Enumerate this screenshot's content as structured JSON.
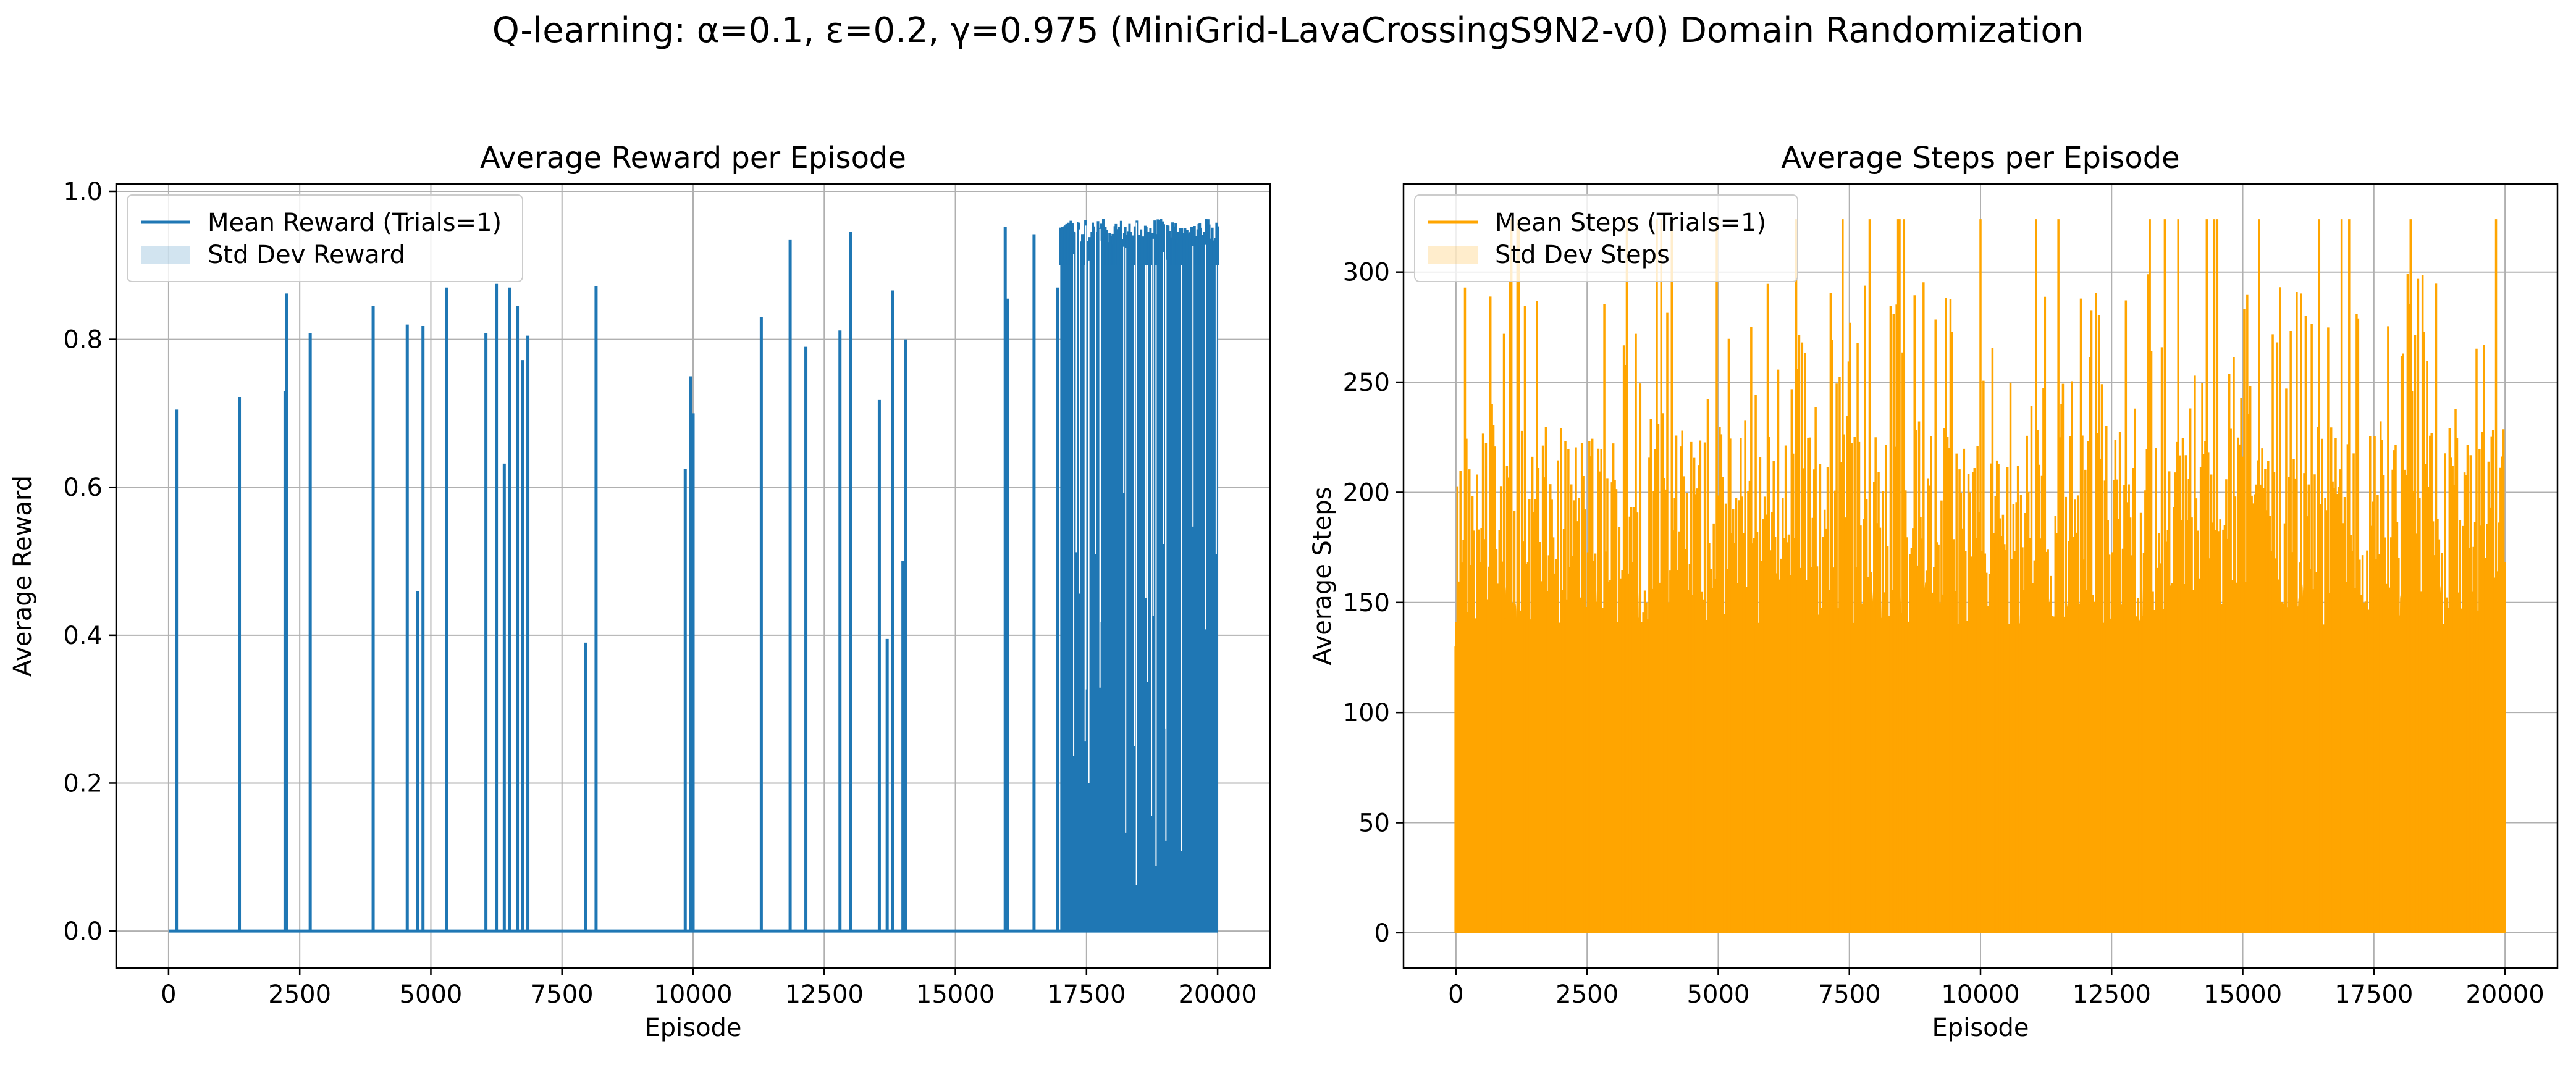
{
  "figure": {
    "suptitle": "Q-learning: α=0.1, ε=0.2, γ=0.975 (MiniGrid-LavaCrossingS9N2-v0) Domain Randomization"
  },
  "colors": {
    "reward": "#1f77b4",
    "steps": "#ffa500",
    "grid": "#b0b0b0"
  },
  "chart_data": [
    {
      "type": "line",
      "title": "Average Reward per Episode",
      "xlabel": "Episode",
      "ylabel": "Average Reward",
      "xlim": [
        -1000,
        21000
      ],
      "ylim": [
        -0.05,
        1.01
      ],
      "xticks": [
        0,
        2500,
        5000,
        7500,
        10000,
        12500,
        15000,
        17500,
        20000
      ],
      "yticks": [
        0.0,
        0.2,
        0.4,
        0.6,
        0.8,
        1.0
      ],
      "xtick_labels": [
        "0",
        "2500",
        "5000",
        "7500",
        "10000",
        "12500",
        "15000",
        "17500",
        "20000"
      ],
      "ytick_labels": [
        "0.0",
        "0.2",
        "0.4",
        "0.6",
        "0.8",
        "1.0"
      ],
      "grid": true,
      "legend_position": "upper-left",
      "legend": [
        "Mean Reward (Trials=1)",
        "Std Dev Reward"
      ],
      "baseline": 0.0,
      "spikes": [
        {
          "x": 150,
          "y": 0.705
        },
        {
          "x": 1350,
          "y": 0.722
        },
        {
          "x": 2220,
          "y": 0.73
        },
        {
          "x": 2250,
          "y": 0.862
        },
        {
          "x": 2700,
          "y": 0.808
        },
        {
          "x": 3900,
          "y": 0.845
        },
        {
          "x": 4550,
          "y": 0.82
        },
        {
          "x": 4750,
          "y": 0.46
        },
        {
          "x": 4850,
          "y": 0.818
        },
        {
          "x": 5300,
          "y": 0.87
        },
        {
          "x": 6050,
          "y": 0.808
        },
        {
          "x": 6250,
          "y": 0.875
        },
        {
          "x": 6400,
          "y": 0.632
        },
        {
          "x": 6500,
          "y": 0.87
        },
        {
          "x": 6650,
          "y": 0.845
        },
        {
          "x": 6750,
          "y": 0.772
        },
        {
          "x": 6850,
          "y": 0.805
        },
        {
          "x": 7950,
          "y": 0.39
        },
        {
          "x": 8150,
          "y": 0.872
        },
        {
          "x": 9850,
          "y": 0.625
        },
        {
          "x": 9950,
          "y": 0.75
        },
        {
          "x": 10000,
          "y": 0.7
        },
        {
          "x": 11300,
          "y": 0.83
        },
        {
          "x": 11850,
          "y": 0.935
        },
        {
          "x": 12150,
          "y": 0.79
        },
        {
          "x": 12800,
          "y": 0.812
        },
        {
          "x": 13000,
          "y": 0.945
        },
        {
          "x": 13550,
          "y": 0.718
        },
        {
          "x": 13700,
          "y": 0.395
        },
        {
          "x": 13800,
          "y": 0.866
        },
        {
          "x": 14000,
          "y": 0.5
        },
        {
          "x": 14050,
          "y": 0.8
        },
        {
          "x": 15950,
          "y": 0.952
        },
        {
          "x": 16000,
          "y": 0.855
        },
        {
          "x": 16500,
          "y": 0.942
        },
        {
          "x": 16950,
          "y": 0.87
        }
      ],
      "dense_region": {
        "x_start": 17000,
        "x_end": 20000,
        "y_max": 0.963,
        "y_min_top": 0.9
      }
    },
    {
      "type": "line",
      "title": "Average Steps per Episode",
      "xlabel": "Episode",
      "ylabel": "Average Steps",
      "xlim": [
        -1000,
        21000
      ],
      "ylim": [
        -16,
        340
      ],
      "xticks": [
        0,
        2500,
        5000,
        7500,
        10000,
        12500,
        15000,
        17500,
        20000
      ],
      "yticks": [
        0,
        50,
        100,
        150,
        200,
        250,
        300
      ],
      "xtick_labels": [
        "0",
        "2500",
        "5000",
        "7500",
        "10000",
        "12500",
        "15000",
        "17500",
        "20000"
      ],
      "ytick_labels": [
        "0",
        "50",
        "100",
        "150",
        "200",
        "250",
        "300"
      ],
      "grid": true,
      "legend_position": "upper-left",
      "legend": [
        "Mean Steps (Trials=1)",
        "Std Dev Steps"
      ],
      "baseline": 0,
      "max_steps": 324,
      "typical_floor_range": [
        95,
        160
      ],
      "typical_peak_range": [
        140,
        260
      ]
    }
  ]
}
